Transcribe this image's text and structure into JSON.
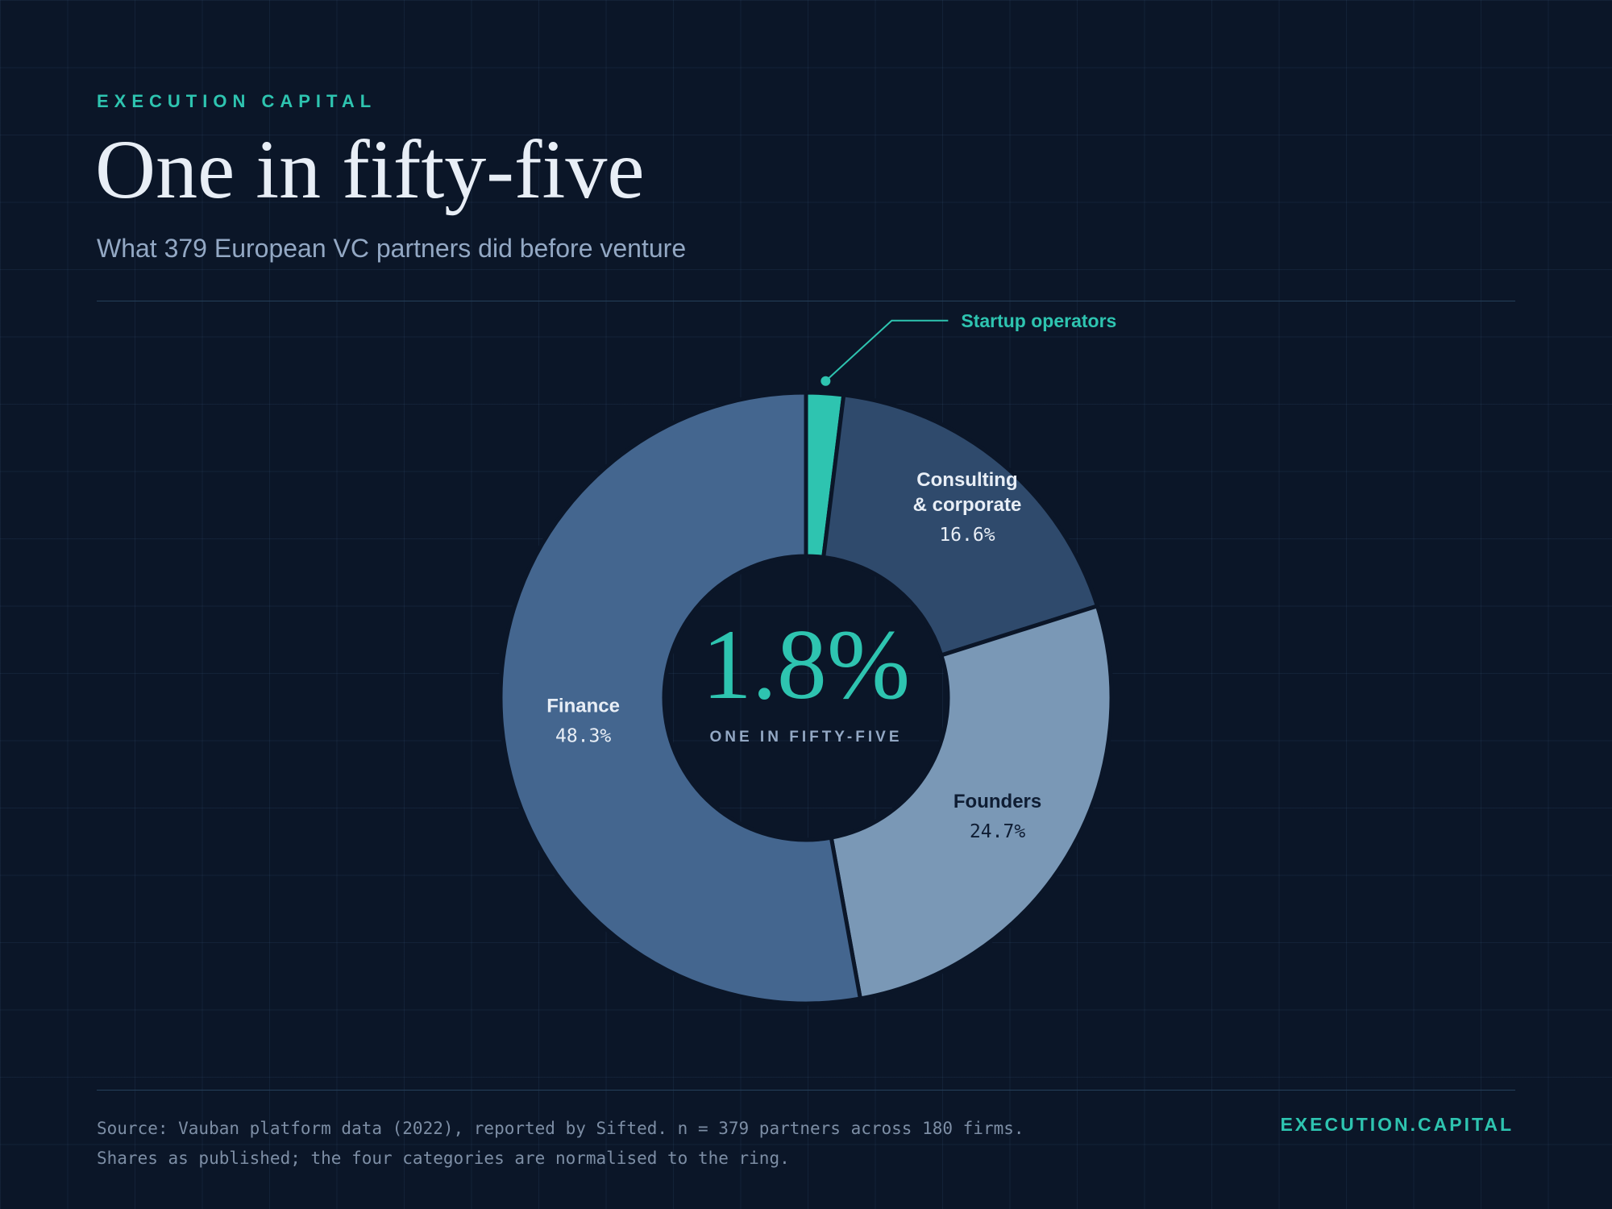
{
  "header": {
    "eyebrow": "EXECUTION CAPITAL",
    "title": "One in fifty-five",
    "subtitle": "What 379 European VC partners did before venture"
  },
  "center": {
    "value": "1.8%",
    "caption": "ONE IN FIFTY-FIVE"
  },
  "chart_data": {
    "type": "pie",
    "variant": "donut",
    "title": "One in fifty-five",
    "subtitle": "What 379 European VC partners did before venture",
    "slices": [
      {
        "label": "Startup operators",
        "value": 1.8,
        "display": "",
        "color": "#2ec4b0",
        "label_color": "#2ec4b0",
        "value_color": "#2ec4b0"
      },
      {
        "label": "Consulting\n& corporate",
        "value": 16.6,
        "display": "16.6%",
        "color": "#2f4a6c",
        "label_color": "#e8eef6",
        "value_color": "#e8eef6"
      },
      {
        "label": "Founders",
        "value": 24.7,
        "display": "24.7%",
        "color": "#7a98b6",
        "label_color": "#0f1d33",
        "value_color": "#0f1d33"
      },
      {
        "label": "Finance",
        "value": 48.3,
        "display": "48.3%",
        "color": "#44668f",
        "label_color": "#e8eef6",
        "value_color": "#e8eef6"
      }
    ],
    "start": "12 o'clock",
    "direction": "clockwise",
    "legend": "none"
  },
  "footer": {
    "source_line1": "Source: Vauban platform data (2022), reported by Sifted. n = 379 partners across 180 firms.",
    "source_line2": "Shares as published; the four categories are normalised to the ring.",
    "brand": "EXECUTION.CAPITAL"
  },
  "colors": {
    "background": "#0b1628",
    "accent": "#2ec4b0",
    "title": "#e8eef6",
    "subtitle": "#93a8c4",
    "muted": "#7d8ea5"
  }
}
